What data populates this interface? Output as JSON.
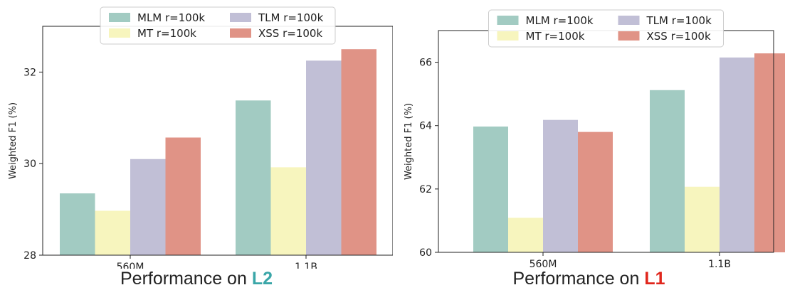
{
  "colors": {
    "series": [
      "#a2cbc2",
      "#f7f5be",
      "#c1bfd6",
      "#e09386"
    ],
    "highlight_l2": "#3aa6a8",
    "highlight_l1": "#e0261c"
  },
  "legend_labels": [
    "MLM r=100k",
    "MT r=100k",
    "TLM r=100k",
    "XSS r=100k"
  ],
  "panels": [
    {
      "caption_prefix": "Performance on ",
      "caption_highlight": "L2",
      "highlight_color_key": "highlight_l2"
    },
    {
      "caption_prefix": "Performance on ",
      "caption_highlight": "L1",
      "highlight_color_key": "highlight_l1"
    }
  ],
  "chart_data": [
    {
      "type": "bar",
      "categories": [
        "560M",
        "1.1B"
      ],
      "series": [
        {
          "name": "MLM r=100k",
          "values": [
            29.35,
            31.38
          ]
        },
        {
          "name": "MT r=100k",
          "values": [
            28.97,
            29.92
          ]
        },
        {
          "name": "TLM r=100k",
          "values": [
            30.1,
            32.25
          ]
        },
        {
          "name": "XSS r=100k",
          "values": [
            30.57,
            32.5
          ]
        }
      ],
      "title": "",
      "xlabel": "",
      "ylabel": "Weighted F1 (%)",
      "ylim": [
        28,
        33
      ],
      "yticks": [
        28,
        30,
        32
      ],
      "grid": false,
      "legend": "top-center"
    },
    {
      "type": "bar",
      "categories": [
        "560M",
        "1.1B"
      ],
      "series": [
        {
          "name": "MLM r=100k",
          "values": [
            63.97,
            65.12
          ]
        },
        {
          "name": "MT r=100k",
          "values": [
            61.09,
            62.07
          ]
        },
        {
          "name": "TLM r=100k",
          "values": [
            64.18,
            66.15
          ]
        },
        {
          "name": "XSS r=100k",
          "values": [
            63.8,
            66.28
          ]
        }
      ],
      "title": "",
      "xlabel": "",
      "ylabel": "Weighted F1 (%)",
      "ylim": [
        60,
        67
      ],
      "yticks": [
        60,
        62,
        64,
        66
      ],
      "grid": false,
      "legend": "top-center"
    }
  ]
}
